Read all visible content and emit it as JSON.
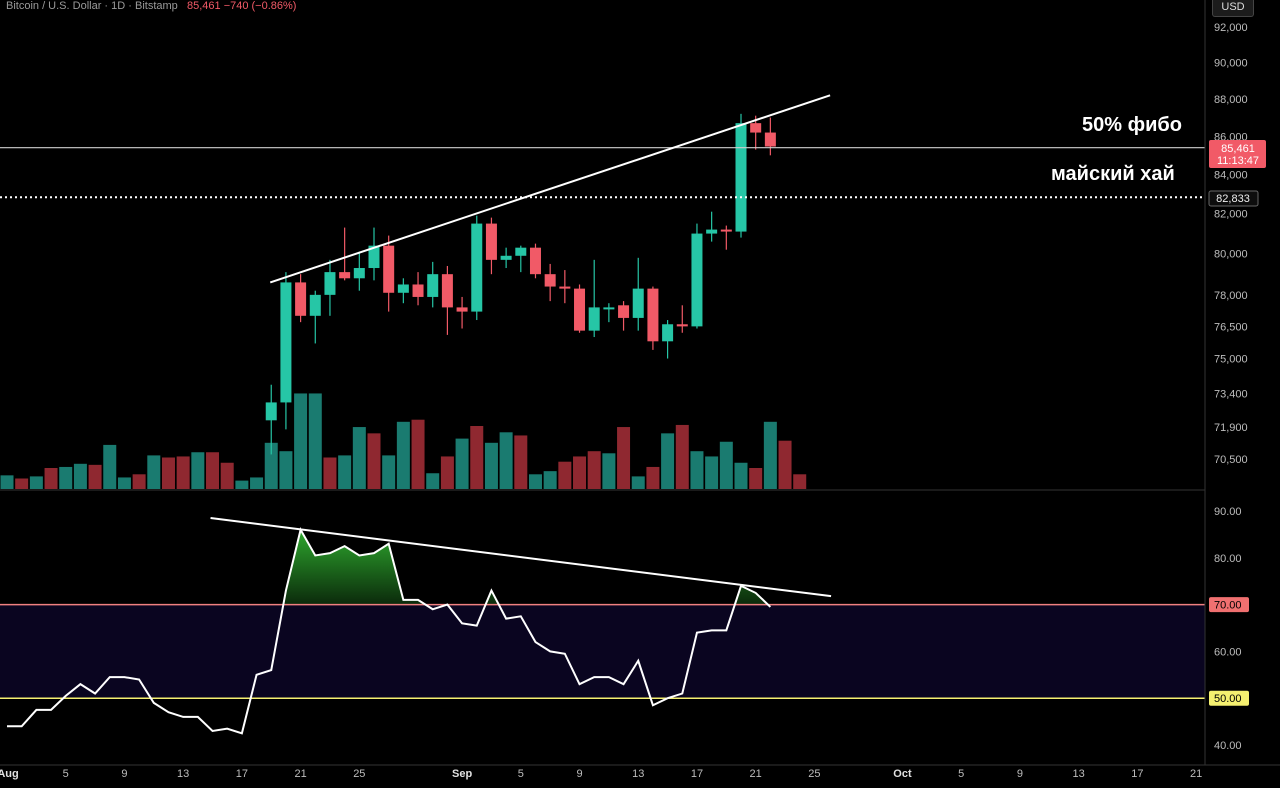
{
  "header": {
    "symbol": "Bitcoin / U.S. Dollar · 1D · Bitstamp",
    "price": "85,461",
    "change": "−740 (−0.86%)"
  },
  "currency_label": "USD",
  "annotations": {
    "fib": "50% фибо",
    "may_high": "майский хай"
  },
  "price_tags": {
    "last_price": "85,461",
    "countdown": "11:13:47",
    "may_high_level": "82,833"
  },
  "colors": {
    "up": "#26c6a6",
    "down": "#f15a67",
    "vol_up": "#1a7b70",
    "vol_down": "#8f2830",
    "rsi_line": "#ffffff",
    "rsi_70": "#f08080",
    "rsi_50": "#f5f070",
    "rsi_band": "#0a0520",
    "overbought_fill": "#1f7a1f"
  },
  "chart_data": [
    {
      "type": "candlestick",
      "title": "Bitcoin / U.S. Dollar · 1D · Bitstamp",
      "ylabel": "USD",
      "y_scale": "log",
      "ylim": [
        69500,
        93000
      ],
      "y_ticks": [
        "92,000",
        "90,000",
        "88,000",
        "86,000",
        "84,000",
        "82,000",
        "80,000",
        "78,000",
        "76,500",
        "75,000",
        "73,400",
        "71,900",
        "70,500"
      ],
      "x_ticks": [
        "Aug",
        "5",
        "9",
        "13",
        "17",
        "21",
        "25",
        "Sep",
        "5",
        "9",
        "13",
        "17",
        "21",
        "25",
        "Oct",
        "5",
        "9",
        "13",
        "17",
        "21"
      ],
      "horizontal_levels": [
        {
          "label": "50% фибо",
          "value": 85400,
          "style": "solid"
        },
        {
          "label": "майский хай",
          "value": 82833,
          "style": "dotted"
        }
      ],
      "trendlines": [
        {
          "from": [
            "Aug 19",
            78600
          ],
          "to": [
            "Sep 26",
            88200
          ]
        }
      ],
      "candles": [
        {
          "date": "Aug 19",
          "o": 72200,
          "h": 73800,
          "l": 70700,
          "c": 73000
        },
        {
          "date": "Aug 20",
          "o": 73000,
          "h": 79100,
          "l": 71800,
          "c": 78600
        },
        {
          "date": "Aug 21",
          "o": 78600,
          "h": 79000,
          "l": 76700,
          "c": 77000
        },
        {
          "date": "Aug 22",
          "o": 77000,
          "h": 78200,
          "l": 75700,
          "c": 78000
        },
        {
          "date": "Aug 23",
          "o": 78000,
          "h": 79700,
          "l": 77000,
          "c": 79100
        },
        {
          "date": "Aug 24",
          "o": 79100,
          "h": 81300,
          "l": 78700,
          "c": 78800
        },
        {
          "date": "Aug 25",
          "o": 78800,
          "h": 80100,
          "l": 78200,
          "c": 79300
        },
        {
          "date": "Aug 26",
          "o": 79300,
          "h": 81300,
          "l": 78700,
          "c": 80400
        },
        {
          "date": "Aug 27",
          "o": 80400,
          "h": 80900,
          "l": 77200,
          "c": 78100
        },
        {
          "date": "Aug 28",
          "o": 78100,
          "h": 78800,
          "l": 77600,
          "c": 78500
        },
        {
          "date": "Aug 29",
          "o": 78500,
          "h": 79100,
          "l": 77500,
          "c": 77900
        },
        {
          "date": "Aug 30",
          "o": 77900,
          "h": 79600,
          "l": 77400,
          "c": 79000
        },
        {
          "date": "Aug 31",
          "o": 79000,
          "h": 79400,
          "l": 76100,
          "c": 77400
        },
        {
          "date": "Sep 1",
          "o": 77400,
          "h": 77900,
          "l": 76400,
          "c": 77200
        },
        {
          "date": "Sep 2",
          "o": 77200,
          "h": 81900,
          "l": 76800,
          "c": 81500
        },
        {
          "date": "Sep 3",
          "o": 81500,
          "h": 81800,
          "l": 79000,
          "c": 79700
        },
        {
          "date": "Sep 4",
          "o": 79700,
          "h": 80300,
          "l": 79300,
          "c": 79900
        },
        {
          "date": "Sep 5",
          "o": 79900,
          "h": 80400,
          "l": 79100,
          "c": 80300
        },
        {
          "date": "Sep 6",
          "o": 80300,
          "h": 80500,
          "l": 78800,
          "c": 79000
        },
        {
          "date": "Sep 7",
          "o": 79000,
          "h": 79500,
          "l": 77700,
          "c": 78400
        },
        {
          "date": "Sep 8",
          "o": 78400,
          "h": 79200,
          "l": 77600,
          "c": 78300
        },
        {
          "date": "Sep 9",
          "o": 78300,
          "h": 78500,
          "l": 76200,
          "c": 76300
        },
        {
          "date": "Sep 10",
          "o": 76300,
          "h": 79700,
          "l": 76000,
          "c": 77400
        },
        {
          "date": "Sep 11",
          "o": 77400,
          "h": 77600,
          "l": 76700,
          "c": 77400
        },
        {
          "date": "Sep 12",
          "o": 77500,
          "h": 77700,
          "l": 76300,
          "c": 76900
        },
        {
          "date": "Sep 13",
          "o": 76900,
          "h": 79800,
          "l": 76300,
          "c": 78300
        },
        {
          "date": "Sep 14",
          "o": 78300,
          "h": 78400,
          "l": 75400,
          "c": 75800
        },
        {
          "date": "Sep 15",
          "o": 75800,
          "h": 76800,
          "l": 75000,
          "c": 76600
        },
        {
          "date": "Sep 16",
          "o": 76600,
          "h": 77500,
          "l": 76200,
          "c": 76500
        },
        {
          "date": "Sep 17",
          "o": 76500,
          "h": 81500,
          "l": 76400,
          "c": 81000
        },
        {
          "date": "Sep 18",
          "o": 81000,
          "h": 82100,
          "l": 80600,
          "c": 81200
        },
        {
          "date": "Sep 19",
          "o": 81200,
          "h": 81400,
          "l": 80200,
          "c": 81100
        },
        {
          "date": "Sep 20",
          "o": 81100,
          "h": 87200,
          "l": 80800,
          "c": 86700
        },
        {
          "date": "Sep 21",
          "o": 86700,
          "h": 87100,
          "l": 85300,
          "c": 86200
        },
        {
          "date": "Sep 22",
          "o": 86200,
          "h": 87000,
          "l": 85000,
          "c": 85461
        }
      ],
      "volume": [
        {
          "date": "Aug 1",
          "v": 0.13,
          "up": true
        },
        {
          "date": "Aug 2",
          "v": 0.1,
          "up": false
        },
        {
          "date": "Aug 3",
          "v": 0.12,
          "up": true
        },
        {
          "date": "Aug 4",
          "v": 0.2,
          "up": false
        },
        {
          "date": "Aug 5",
          "v": 0.21,
          "up": true
        },
        {
          "date": "Aug 6",
          "v": 0.24,
          "up": true
        },
        {
          "date": "Aug 7",
          "v": 0.23,
          "up": false
        },
        {
          "date": "Aug 8",
          "v": 0.42,
          "up": true
        },
        {
          "date": "Aug 9",
          "v": 0.11,
          "up": true
        },
        {
          "date": "Aug 10",
          "v": 0.14,
          "up": false
        },
        {
          "date": "Aug 11",
          "v": 0.32,
          "up": true
        },
        {
          "date": "Aug 12",
          "v": 0.3,
          "up": false
        },
        {
          "date": "Aug 13",
          "v": 0.31,
          "up": false
        },
        {
          "date": "Aug 14",
          "v": 0.35,
          "up": true
        },
        {
          "date": "Aug 15",
          "v": 0.35,
          "up": false
        },
        {
          "date": "Aug 16",
          "v": 0.25,
          "up": false
        },
        {
          "date": "Aug 17",
          "v": 0.08,
          "up": true
        },
        {
          "date": "Aug 18",
          "v": 0.11,
          "up": true
        },
        {
          "date": "Aug 19",
          "v": 0.44,
          "up": true
        },
        {
          "date": "Aug 20",
          "v": 0.36,
          "up": true
        },
        {
          "date": "Aug 21",
          "v": 0.91,
          "up": true
        },
        {
          "date": "Aug 22",
          "v": 0.91,
          "up": true
        },
        {
          "date": "Aug 23",
          "v": 0.3,
          "up": false
        },
        {
          "date": "Aug 24",
          "v": 0.32,
          "up": true
        },
        {
          "date": "Aug 25",
          "v": 0.59,
          "up": true
        },
        {
          "date": "Aug 26",
          "v": 0.53,
          "up": false
        },
        {
          "date": "Aug 27",
          "v": 0.32,
          "up": true
        },
        {
          "date": "Aug 28",
          "v": 0.64,
          "up": true
        },
        {
          "date": "Aug 29",
          "v": 0.66,
          "up": false
        },
        {
          "date": "Aug 30",
          "v": 0.15,
          "up": true
        },
        {
          "date": "Aug 31",
          "v": 0.31,
          "up": false
        },
        {
          "date": "Sep 1",
          "v": 0.48,
          "up": true
        },
        {
          "date": "Sep 2",
          "v": 0.6,
          "up": false
        },
        {
          "date": "Sep 3",
          "v": 0.44,
          "up": true
        },
        {
          "date": "Sep 4",
          "v": 0.54,
          "up": true
        },
        {
          "date": "Sep 5",
          "v": 0.51,
          "up": false
        },
        {
          "date": "Sep 6",
          "v": 0.14,
          "up": true
        },
        {
          "date": "Sep 7",
          "v": 0.17,
          "up": true
        },
        {
          "date": "Sep 8",
          "v": 0.26,
          "up": false
        },
        {
          "date": "Sep 9",
          "v": 0.31,
          "up": false
        },
        {
          "date": "Sep 10",
          "v": 0.36,
          "up": false
        },
        {
          "date": "Sep 11",
          "v": 0.34,
          "up": true
        },
        {
          "date": "Sep 12",
          "v": 0.59,
          "up": false
        },
        {
          "date": "Sep 13",
          "v": 0.12,
          "up": true
        },
        {
          "date": "Sep 14",
          "v": 0.21,
          "up": false
        },
        {
          "date": "Sep 15",
          "v": 0.53,
          "up": true
        },
        {
          "date": "Sep 16",
          "v": 0.61,
          "up": false
        },
        {
          "date": "Sep 17",
          "v": 0.36,
          "up": true
        },
        {
          "date": "Sep 18",
          "v": 0.31,
          "up": true
        },
        {
          "date": "Sep 19",
          "v": 0.45,
          "up": true
        },
        {
          "date": "Sep 20",
          "v": 0.25,
          "up": true
        },
        {
          "date": "Sep 21",
          "v": 0.2,
          "up": false
        },
        {
          "date": "Sep 22",
          "v": 0.64,
          "up": true
        },
        {
          "date": "Sep 23",
          "v": 0.46,
          "up": false
        },
        {
          "date": "Sep 24",
          "v": 0.14,
          "up": false
        }
      ]
    },
    {
      "type": "line",
      "ylim": [
        37,
        93
      ],
      "y_ticks": [
        "90.00",
        "80.00",
        "70.00",
        "60.00",
        "50.00",
        "40.00"
      ],
      "levels": [
        {
          "value": 70,
          "label": "70.00"
        },
        {
          "value": 50,
          "label": "50.00"
        }
      ],
      "trendlines": [
        {
          "from": [
            "Aug 15",
            88.5
          ],
          "to": [
            "Sep 26",
            71.8
          ]
        }
      ],
      "series": [
        {
          "values": [
            44,
            44,
            47.5,
            47.5,
            50.5,
            53,
            51,
            54.5,
            54.5,
            54,
            49,
            47,
            46,
            46,
            43,
            43.5,
            42.5,
            55,
            56,
            73,
            86,
            80.5,
            81,
            82.5,
            80.5,
            81,
            83,
            71,
            71,
            69,
            70,
            66,
            65.5,
            73,
            67,
            67.5,
            62,
            60,
            59.5,
            53,
            54.5,
            54.5,
            53,
            58,
            48.5,
            50,
            51,
            64,
            64.5,
            64.5,
            74,
            72.5,
            69.5
          ]
        }
      ]
    }
  ]
}
